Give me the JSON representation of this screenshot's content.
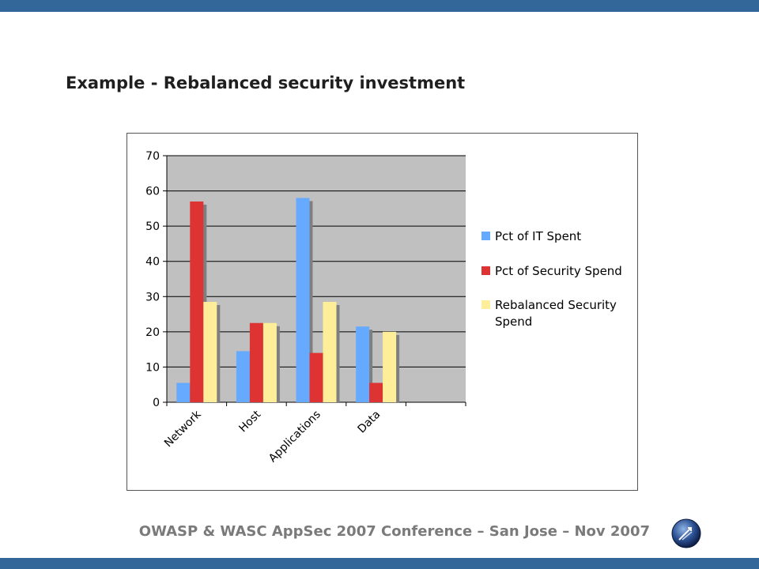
{
  "slide": {
    "title": "Example - Rebalanced security investment",
    "footer": "OWASP & WASC AppSec 2007 Conference – San Jose – Nov 2007",
    "logo_icon": "owasp-globe-icon"
  },
  "colors": {
    "bars": "#336699",
    "plot_bg": "#c0c0c0",
    "series": [
      "#66aaff",
      "#dd3333",
      "#ffee99"
    ]
  },
  "chart_data": {
    "type": "bar",
    "title": "",
    "xlabel": "",
    "ylabel": "",
    "ylim": [
      0,
      70
    ],
    "yticks": [
      0,
      10,
      20,
      30,
      40,
      50,
      60,
      70
    ],
    "grid": true,
    "legend_position": "right",
    "categories": [
      "Network",
      "Host",
      "Applications",
      "Data"
    ],
    "series": [
      {
        "name": "Pct of IT Spent",
        "values": [
          5.5,
          14.5,
          58,
          21.5
        ]
      },
      {
        "name": "Pct of Security Spend",
        "values": [
          57,
          22.5,
          14,
          5.5
        ]
      },
      {
        "name": "Rebalanced Security Spend",
        "values": [
          28.5,
          22.5,
          28.5,
          20
        ]
      }
    ],
    "legend_lines": [
      [
        "Pct of IT Spent"
      ],
      [
        "Pct of Security Spend"
      ],
      [
        "Rebalanced Security",
        "Spend"
      ]
    ]
  }
}
